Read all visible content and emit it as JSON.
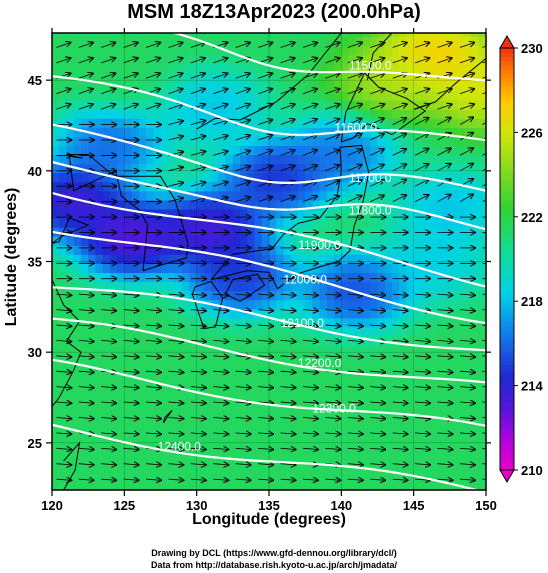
{
  "title": "MSM 18Z13Apr2023 (200.0hPa)",
  "chart_data": {
    "type": "heatmap",
    "xlabel": "Longitude (degrees)",
    "ylabel": "Latitude  (degrees)",
    "xlim": [
      120,
      150
    ],
    "ylim": [
      22.4,
      47.6
    ],
    "x_ticks": [
      "120",
      "125",
      "130",
      "135",
      "140",
      "145",
      "150"
    ],
    "y_ticks": [
      "25",
      "30",
      "35",
      "40",
      "45"
    ],
    "y_tick_values": [
      25,
      30,
      35,
      40,
      45
    ],
    "x_tick_values": [
      120,
      125,
      130,
      135,
      140,
      145,
      150
    ],
    "colorbar": {
      "min": 210,
      "max": 230,
      "tick_labels": [
        "230",
        "226",
        "222",
        "218",
        "214",
        "210"
      ],
      "tick_values": [
        230,
        226,
        222,
        218,
        214,
        210
      ]
    },
    "contours": {
      "variable": "geopotential height",
      "levels": [
        11500,
        11600,
        11700,
        11800,
        11900,
        12000,
        12100,
        12200,
        12300,
        12400
      ],
      "labels": [
        "11500.0",
        "11600.0",
        "11700.0",
        "11800.0",
        "11900.0",
        "12000.0",
        "12100.0",
        "12200.0",
        "12300.0",
        "12400.0"
      ],
      "label_lon": [
        142.0,
        141.0,
        142.0,
        142.0,
        138.5,
        137.5,
        137.3,
        138.5,
        139.5,
        128.8
      ],
      "label_lat": [
        45.8,
        42.4,
        39.6,
        37.8,
        35.9,
        34.0,
        31.6,
        29.4,
        26.9,
        24.8
      ]
    },
    "shading_anomalies": [
      {
        "lon": 125.5,
        "lat": 36.3,
        "value": 210.2
      },
      {
        "lon": 131.0,
        "lat": 36.8,
        "value": 210.8
      },
      {
        "lon": 121.5,
        "lat": 38.4,
        "value": 211.0
      },
      {
        "lon": 135.5,
        "lat": 39.6,
        "value": 212.5
      },
      {
        "lon": 133.0,
        "lat": 34.2,
        "value": 212.8
      },
      {
        "lon": 141.0,
        "lat": 33.4,
        "value": 213.5
      },
      {
        "lon": 124.0,
        "lat": 41.5,
        "value": 214.5
      },
      {
        "lon": 140.0,
        "lat": 41.0,
        "value": 215.0
      },
      {
        "lon": 146.5,
        "lat": 35.0,
        "value": 217.5
      },
      {
        "lon": 147.5,
        "lat": 38.0,
        "value": 217.0
      },
      {
        "lon": 146.5,
        "lat": 46.5,
        "value": 229.0
      },
      {
        "lon": 143.5,
        "lat": 45.0,
        "value": 226.0
      },
      {
        "lon": 150.0,
        "lat": 44.5,
        "value": 227.5
      },
      {
        "lon": 131.0,
        "lat": 43.5,
        "value": 217.0
      },
      {
        "lon": 125.0,
        "lat": 45.5,
        "value": 221.5
      }
    ],
    "background_value": 221.5,
    "grid": true
  },
  "axis_labels": {
    "x": "Longitude (degrees)",
    "y": "Latitude  (degrees)"
  },
  "credits": {
    "line1": "Drawing by DCL (https://www.gfd-dennou.org/library/dcl/)",
    "line2": "Data from http://database.rish.kyoto-u.ac.jp/arch/jmadata/"
  }
}
